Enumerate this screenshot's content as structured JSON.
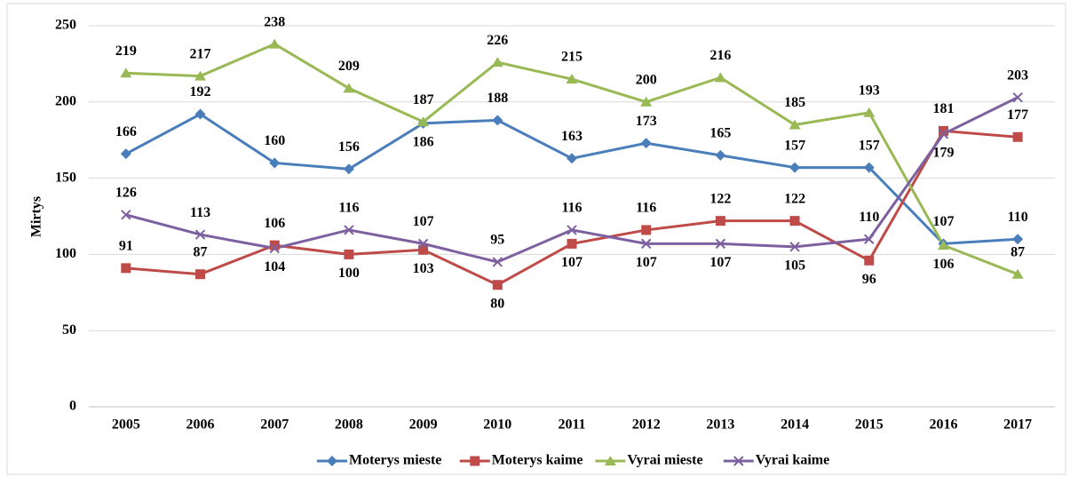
{
  "chart_data": {
    "type": "line",
    "y_label": "Mirtys",
    "categories": [
      "2005",
      "2006",
      "2007",
      "2008",
      "2009",
      "2010",
      "2011",
      "2012",
      "2013",
      "2014",
      "2015",
      "2016",
      "2017"
    ],
    "series": [
      {
        "name": "Moterys mieste",
        "color": "#4a7ebb",
        "marker": "diamond",
        "values": [
          166,
          192,
          160,
          156,
          186,
          188,
          163,
          173,
          165,
          157,
          157,
          107,
          110
        ]
      },
      {
        "name": "Moterys kaime",
        "color": "#be4b48",
        "marker": "square",
        "values": [
          91,
          87,
          106,
          100,
          103,
          80,
          107,
          116,
          122,
          122,
          96,
          181,
          177
        ]
      },
      {
        "name": "Vyrai mieste",
        "color": "#98b954",
        "marker": "triangle",
        "values": [
          219,
          217,
          238,
          209,
          187,
          226,
          215,
          200,
          216,
          185,
          193,
          106,
          87
        ]
      },
      {
        "name": "Vyrai kaime",
        "color": "#7d60a0",
        "marker": "x",
        "values": [
          126,
          113,
          104,
          116,
          107,
          95,
          116,
          107,
          107,
          105,
          110,
          179,
          203
        ]
      }
    ],
    "ylim": [
      0,
      250
    ],
    "yticks": [
      0,
      50,
      100,
      150,
      200,
      250
    ],
    "grid": true,
    "legend": "bottom"
  }
}
